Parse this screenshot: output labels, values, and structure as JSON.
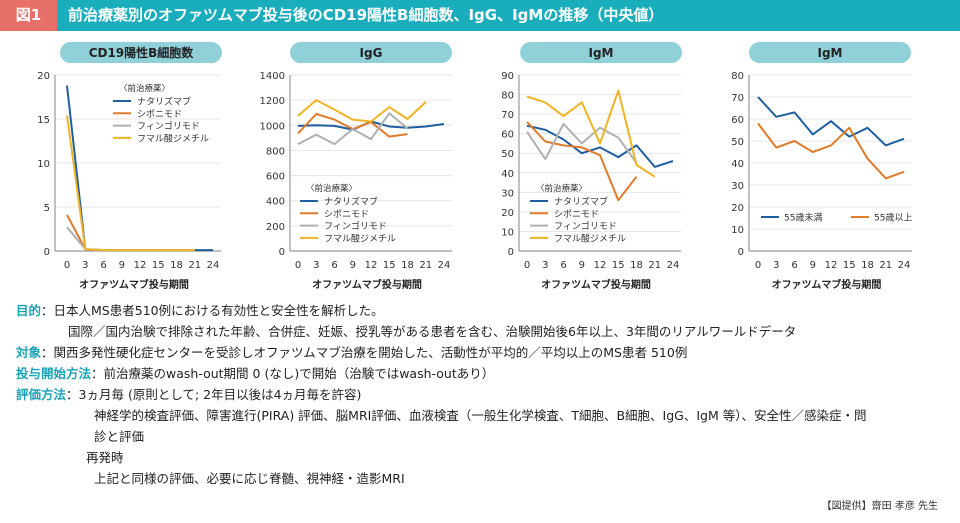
{
  "header": {
    "figure_label": "図1",
    "title": "前治療薬別のオファツムマブ投与後のCD19陽性B細胞数、IgG、IgMの推移（中央値）"
  },
  "colors": {
    "header_bg": "#1aaebd",
    "figure_label_bg": "#e8706a",
    "pill_bg": "#8fd0d9",
    "label_text": "#1aa3b5",
    "natalizumab": "#1f5fa0",
    "siponimod": "#e07b2a",
    "fingolimod": "#b0b0b0",
    "dmf": "#f0b323"
  },
  "chart_data": [
    {
      "type": "line",
      "title": "CD19陽性B細胞数",
      "xlabel": "オファツムマブ投与期間",
      "ylabel": "",
      "x": [
        0,
        3,
        6,
        9,
        12,
        15,
        18,
        21,
        24
      ],
      "ylim": [
        0,
        20
      ],
      "yticks": [
        0,
        5,
        10,
        15,
        20
      ],
      "grid": true,
      "legend_title": "〈前治療薬〉",
      "legend_position": "top-right",
      "series": [
        {
          "name": "ナタリズマブ",
          "color": "#1f5fa0",
          "values": [
            18.8,
            0.2,
            0.1,
            0.1,
            0.1,
            0.1,
            0.1,
            0.1,
            0.1
          ]
        },
        {
          "name": "シポニモド",
          "color": "#e07b2a",
          "values": [
            4.1,
            0.2,
            0.1,
            0.1,
            0.1,
            0.1,
            0.1,
            0.1,
            null
          ]
        },
        {
          "name": "フィンゴリモド",
          "color": "#b0b0b0",
          "values": [
            2.7,
            0.2,
            0.1,
            0.1,
            0.1,
            0.1,
            0.1,
            0.1,
            null
          ]
        },
        {
          "name": "フマル酸ジメチル",
          "color": "#f0b323",
          "values": [
            15.4,
            0.2,
            0.1,
            0.1,
            0.1,
            0.1,
            0.1,
            0.1,
            null
          ]
        }
      ]
    },
    {
      "type": "line",
      "title": "IgG",
      "xlabel": "オファツムマブ投与期間",
      "ylabel": "",
      "x": [
        0,
        3,
        6,
        9,
        12,
        15,
        18,
        21,
        24
      ],
      "ylim": [
        0,
        1400
      ],
      "yticks": [
        0,
        200,
        400,
        600,
        800,
        1000,
        1200,
        1400
      ],
      "grid": true,
      "legend_title": "〈前治療薬〉",
      "legend_position": "bottom-left",
      "series": [
        {
          "name": "ナタリズマブ",
          "color": "#1f5fa0",
          "values": [
            995,
            1000,
            995,
            965,
            1030,
            990,
            980,
            990,
            1010
          ]
        },
        {
          "name": "シポニモド",
          "color": "#e07b2a",
          "values": [
            935,
            1090,
            1045,
            970,
            1025,
            910,
            930,
            null,
            null
          ]
        },
        {
          "name": "フィンゴリモド",
          "color": "#b0b0b0",
          "values": [
            850,
            925,
            850,
            970,
            890,
            1095,
            975,
            null,
            null
          ]
        },
        {
          "name": "フマル酸ジメチル",
          "color": "#f0b323",
          "values": [
            1075,
            1200,
            1125,
            1045,
            1030,
            1145,
            1050,
            1185,
            null
          ]
        }
      ]
    },
    {
      "type": "line",
      "title": "IgM",
      "xlabel": "オファツムマブ投与期間",
      "ylabel": "",
      "x": [
        0,
        3,
        6,
        9,
        12,
        15,
        18,
        21,
        24
      ],
      "ylim": [
        0,
        90
      ],
      "yticks": [
        0,
        10,
        20,
        30,
        40,
        50,
        60,
        70,
        80,
        90
      ],
      "grid": true,
      "legend_title": "〈前治療薬〉",
      "legend_position": "bottom-left",
      "series": [
        {
          "name": "ナタリズマブ",
          "color": "#1f5fa0",
          "values": [
            64,
            62,
            57,
            50,
            53,
            48,
            54,
            43,
            46
          ]
        },
        {
          "name": "シポニモド",
          "color": "#e07b2a",
          "values": [
            66,
            56,
            54,
            53,
            49,
            26,
            38,
            null,
            null
          ]
        },
        {
          "name": "フィンゴリモド",
          "color": "#b0b0b0",
          "values": [
            61,
            47,
            65,
            55,
            63,
            58,
            45,
            null,
            null
          ]
        },
        {
          "name": "フマル酸ジメチル",
          "color": "#f0b323",
          "values": [
            79,
            76,
            69,
            76,
            55,
            82,
            44,
            38,
            null
          ]
        }
      ]
    },
    {
      "type": "line",
      "title": "IgM",
      "xlabel": "オファツムマブ投与期間",
      "ylabel": "",
      "x": [
        0,
        3,
        6,
        9,
        12,
        15,
        18,
        21,
        24
      ],
      "ylim": [
        0,
        80
      ],
      "yticks": [
        0,
        10,
        20,
        30,
        40,
        50,
        60,
        70,
        80
      ],
      "grid": true,
      "legend_title": "",
      "legend_position": "bottom",
      "series": [
        {
          "name": "55歳未満",
          "color": "#1f5fa0",
          "values": [
            70,
            61,
            63,
            53,
            59,
            52,
            56,
            48,
            51
          ]
        },
        {
          "name": "55歳以上",
          "color": "#e07b2a",
          "values": [
            58,
            47,
            50,
            45,
            48,
            56,
            42,
            33,
            36
          ]
        }
      ]
    }
  ],
  "text": {
    "purpose_label": "目的",
    "purpose": "：日本人MS患者510例における有効性と安全性を解析した。",
    "purpose_2": "国際／国内治験で排除された年齢、合併症、妊娠、授乳等がある患者を含む、治験開始後6年以上、3年間のリアルワールドデータ",
    "target_label": "対象",
    "target": "：関西多発性硬化症センターを受診しオファツムマブ治療を開始した、活動性が平均的／平均以上のMS患者 510例",
    "start_label": "投与開始方法",
    "start": "：前治療薬のwash-out期間 0 (なし)で開始（治験ではwash-outあり）",
    "eval_label": "評価方法",
    "eval": "：3ヵ月毎 (原則として; 2年目以後は4ヵ月毎を許容)",
    "eval_2": "神経学的検査評価、障害進行(PIRA) 評価、脳MRI評価、血液検査（一般生化学検査、T細胞、B細胞、IgG、IgM 等）、安全性／感染症・問",
    "eval_3": "診と評価",
    "relapse": "再発時",
    "relapse_2": "上記と同様の評価、必要に応じ脊髄、視神経・造影MRI"
  },
  "credit": "【図提供】齋田 孝彦 先生"
}
